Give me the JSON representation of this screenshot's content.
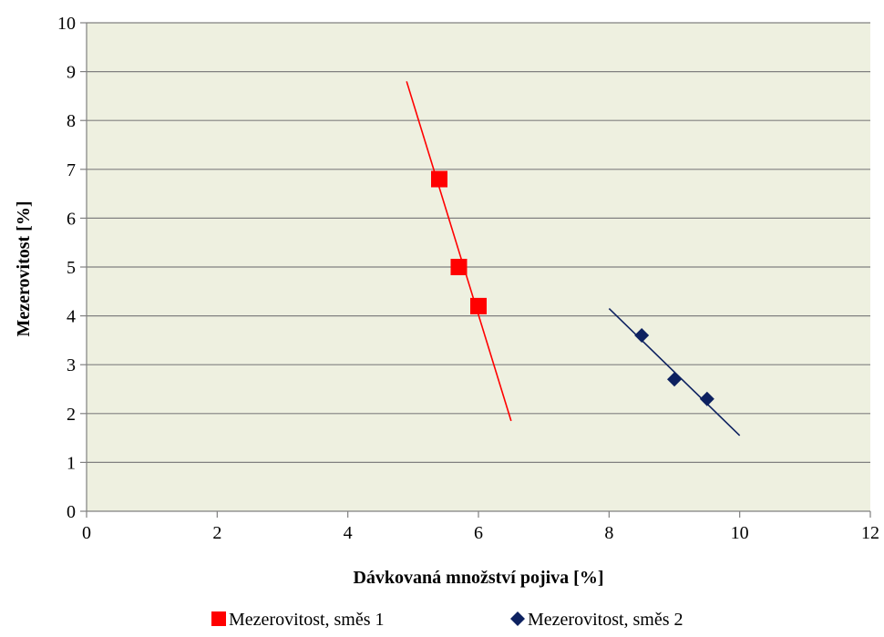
{
  "chart_data": {
    "type": "scatter",
    "title": "",
    "xlabel": "Dávkovaná množství pojiva [%]",
    "ylabel": "Mezerovitost [%]",
    "xlim": [
      0,
      12
    ],
    "ylim": [
      0,
      10
    ],
    "xticks": [
      "0",
      "2",
      "4",
      "6",
      "8",
      "10",
      "12"
    ],
    "yticks": [
      "0",
      "1",
      "2",
      "3",
      "4",
      "5",
      "6",
      "7",
      "8",
      "9",
      "10"
    ],
    "grid": "horizontal",
    "plot_background": "#EEF0E0",
    "legend_position": "bottom",
    "series": [
      {
        "name": "Mezerovitost, směs 1",
        "marker": "square",
        "color": "#FF0000",
        "x": [
          5.4,
          5.7,
          6.0
        ],
        "y": [
          6.8,
          5.0,
          4.2
        ],
        "trendline": {
          "x": [
            4.9,
            6.5
          ],
          "y": [
            8.8,
            1.85
          ],
          "color": "#FF0000"
        }
      },
      {
        "name": "Mezerovitost, směs 2",
        "marker": "diamond",
        "color": "#0D2160",
        "x": [
          8.5,
          9.0,
          9.5
        ],
        "y": [
          3.6,
          2.7,
          2.3
        ],
        "trendline": {
          "x": [
            8.0,
            10.0
          ],
          "y": [
            4.15,
            1.55
          ],
          "color": "#0D2160"
        }
      }
    ]
  }
}
